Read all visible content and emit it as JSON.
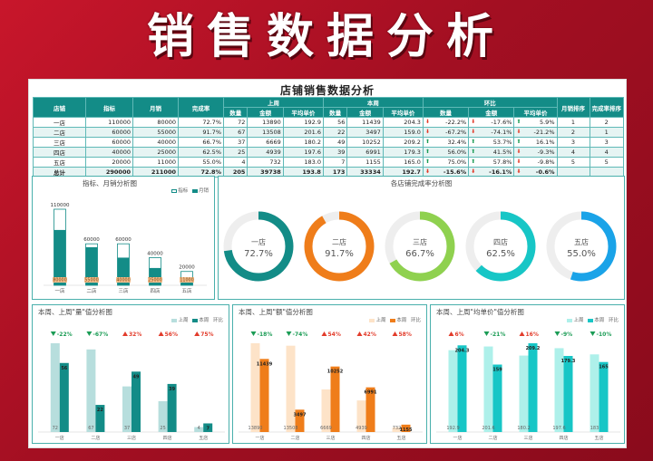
{
  "page": {
    "banner_title": "销售数据分析",
    "board_title": "店铺销售数据分析"
  },
  "table": {
    "head_row1": [
      "店铺",
      "指标",
      "月销",
      "完成率",
      "上周",
      "本周",
      "环比",
      "月销排序",
      "完成率排序"
    ],
    "head_row2": [
      "数量",
      "金额",
      "平均单价",
      "数量",
      "金额",
      "平均单价",
      "数量",
      "金额",
      "平均单价"
    ],
    "rows": [
      {
        "store": "一店",
        "target": "110000",
        "monthly": "80000",
        "rate": "72.7%",
        "lw_qty": "72",
        "lw_amt": "13890",
        "lw_avg": "192.9",
        "tw_qty": "56",
        "tw_amt": "11439",
        "tw_avg": "204.3",
        "c_qty": "-22.2%",
        "c_qty_dir": "down",
        "c_amt": "-17.6%",
        "c_amt_dir": "down",
        "c_avg": "5.9%",
        "c_avg_dir": "up",
        "rank_sales": "1",
        "rank_rate": "2"
      },
      {
        "store": "二店",
        "target": "60000",
        "monthly": "55000",
        "rate": "91.7%",
        "lw_qty": "67",
        "lw_amt": "13508",
        "lw_avg": "201.6",
        "tw_qty": "22",
        "tw_amt": "3497",
        "tw_avg": "159.0",
        "c_qty": "-67.2%",
        "c_qty_dir": "down",
        "c_amt": "-74.1%",
        "c_amt_dir": "down",
        "c_avg": "-21.2%",
        "c_avg_dir": "down",
        "rank_sales": "2",
        "rank_rate": "1"
      },
      {
        "store": "三店",
        "target": "60000",
        "monthly": "40000",
        "rate": "66.7%",
        "lw_qty": "37",
        "lw_amt": "6669",
        "lw_avg": "180.2",
        "tw_qty": "49",
        "tw_amt": "10252",
        "tw_avg": "209.2",
        "c_qty": "32.4%",
        "c_qty_dir": "up",
        "c_amt": "53.7%",
        "c_amt_dir": "up",
        "c_avg": "16.1%",
        "c_avg_dir": "up",
        "rank_sales": "3",
        "rank_rate": "3"
      },
      {
        "store": "四店",
        "target": "40000",
        "monthly": "25000",
        "rate": "62.5%",
        "lw_qty": "25",
        "lw_amt": "4939",
        "lw_avg": "197.6",
        "tw_qty": "39",
        "tw_amt": "6991",
        "tw_avg": "179.3",
        "c_qty": "56.0%",
        "c_qty_dir": "up",
        "c_amt": "41.5%",
        "c_amt_dir": "up",
        "c_avg": "-9.3%",
        "c_avg_dir": "down",
        "rank_sales": "4",
        "rank_rate": "4"
      },
      {
        "store": "五店",
        "target": "20000",
        "monthly": "11000",
        "rate": "55.0%",
        "lw_qty": "4",
        "lw_amt": "732",
        "lw_avg": "183.0",
        "tw_qty": "7",
        "tw_amt": "1155",
        "tw_avg": "165.0",
        "c_qty": "75.0%",
        "c_qty_dir": "up",
        "c_amt": "57.8%",
        "c_amt_dir": "up",
        "c_avg": "-9.8%",
        "c_avg_dir": "down",
        "rank_sales": "5",
        "rank_rate": "5"
      },
      {
        "store": "总计",
        "target": "290000",
        "monthly": "211000",
        "rate": "72.8%",
        "lw_qty": "205",
        "lw_amt": "39738",
        "lw_avg": "193.8",
        "tw_qty": "173",
        "tw_amt": "33334",
        "tw_avg": "192.7",
        "c_qty": "-15.6%",
        "c_qty_dir": "down",
        "c_amt": "-16.1%",
        "c_amt_dir": "down",
        "c_avg": "-0.6%",
        "c_avg_dir": "down",
        "rank_sales": "",
        "rank_rate": ""
      }
    ]
  },
  "colors": {
    "teal": "#138c87",
    "orange": "#ef7d1a",
    "green": "#8fd14f",
    "cyan": "#17c6c6",
    "blue": "#1aa3e8",
    "up": "#1b9c55",
    "down": "#e23b2a"
  },
  "chart_data": [
    {
      "type": "bar",
      "title": "指标、月销分析图",
      "legend": [
        "指标",
        "月销"
      ],
      "categories": [
        "一店",
        "二店",
        "三店",
        "四店",
        "五店"
      ],
      "series": [
        {
          "name": "指标",
          "values": [
            110000,
            60000,
            60000,
            40000,
            20000
          ]
        },
        {
          "name": "月销",
          "values": [
            80000,
            55000,
            40000,
            25000,
            11000
          ]
        }
      ]
    },
    {
      "type": "pie",
      "title": "各店铺完成率分析图",
      "categories": [
        "一店",
        "二店",
        "三店",
        "四店",
        "五店"
      ],
      "values": [
        72.7,
        91.7,
        66.7,
        62.5,
        55.0
      ],
      "labels": [
        "72.7%",
        "91.7%",
        "66.7%",
        "62.5%",
        "55.0%"
      ]
    },
    {
      "type": "bar",
      "title": "本周、上周\"量\"值分析图",
      "legend": [
        "上周",
        "本周",
        "环比"
      ],
      "categories": [
        "一店",
        "二店",
        "三店",
        "四店",
        "五店"
      ],
      "series": [
        {
          "name": "上周",
          "values": [
            72,
            67,
            37,
            25,
            4
          ]
        },
        {
          "name": "本周",
          "values": [
            56,
            22,
            49,
            39,
            7
          ]
        }
      ],
      "change_labels": [
        "-22%",
        "-67%",
        "32%",
        "56%",
        "75%"
      ],
      "change_dir": [
        "down",
        "down",
        "up",
        "up",
        "up"
      ]
    },
    {
      "type": "bar",
      "title": "本周、上周\"额\"值分析图",
      "legend": [
        "上周",
        "本周",
        "环比"
      ],
      "categories": [
        "一店",
        "二店",
        "三店",
        "四店",
        "五店"
      ],
      "series": [
        {
          "name": "上周",
          "values": [
            13890,
            13508,
            6669,
            4939,
            732
          ]
        },
        {
          "name": "本周",
          "values": [
            11439,
            3497,
            10252,
            6991,
            1155
          ]
        }
      ],
      "change_labels": [
        "-18%",
        "-74%",
        "54%",
        "42%",
        "58%"
      ],
      "change_dir": [
        "down",
        "down",
        "up",
        "up",
        "up"
      ]
    },
    {
      "type": "bar",
      "title": "本周、上周\"均单价\"值分析图",
      "legend": [
        "上周",
        "本周",
        "环比"
      ],
      "categories": [
        "一店",
        "二店",
        "三店",
        "四店",
        "五店"
      ],
      "series": [
        {
          "name": "上周",
          "values": [
            192.9,
            201.6,
            180.2,
            197.6,
            183.0
          ]
        },
        {
          "name": "本周",
          "values": [
            204.3,
            159.0,
            209.2,
            179.3,
            165.0
          ]
        }
      ],
      "change_labels": [
        "6%",
        "-21%",
        "16%",
        "-9%",
        "-10%"
      ],
      "change_dir": [
        "up",
        "down",
        "up",
        "down",
        "down"
      ]
    }
  ]
}
